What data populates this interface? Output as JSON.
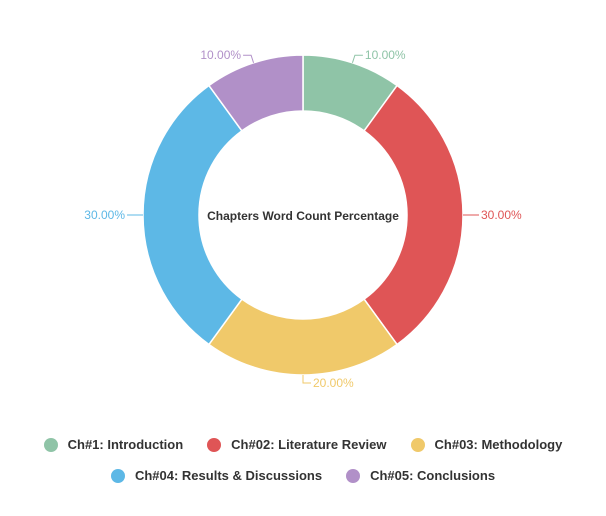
{
  "chart_data": {
    "type": "pie",
    "title": "Chapters Word Count Percentage",
    "categories": [
      "Ch#1: Introduction",
      "Ch#02: Literature Review",
      "Ch#03: Methodology",
      "Ch#04: Results & Discussions",
      "Ch#05: Conclusions"
    ],
    "values": [
      10,
      30,
      20,
      30,
      10
    ],
    "value_labels": [
      "10.00%",
      "30.00%",
      "20.00%",
      "30.00%",
      "10.00%"
    ],
    "colors": [
      "#8fc4a7",
      "#df5556",
      "#f0c96a",
      "#5db8e6",
      "#b190c8"
    ],
    "legend_position": "bottom",
    "donut": true
  }
}
